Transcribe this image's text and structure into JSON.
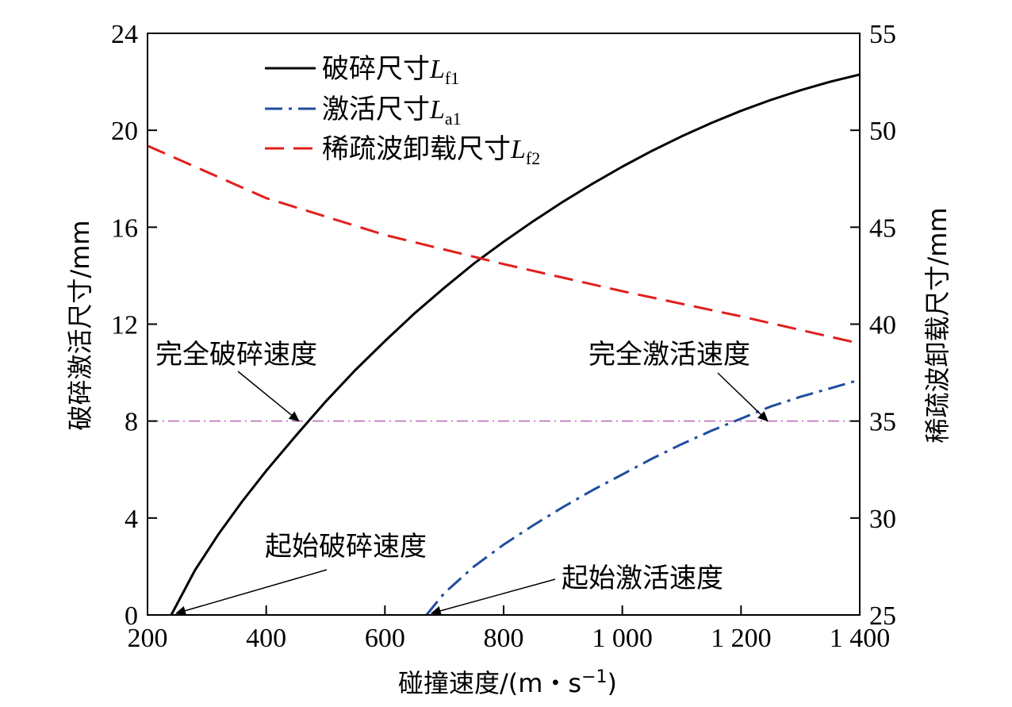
{
  "chart_data": {
    "type": "line",
    "xlabel": "碰撞速度/(m・s",
    "xlabel_sup": "−1",
    "xlabel_close": ")",
    "ylabel_left": "破碎激活尺寸/mm",
    "ylabel_right": "稀疏波卸载尺寸/mm",
    "xlim": [
      200,
      1400
    ],
    "ylim_left": [
      0,
      24
    ],
    "ylim_right": [
      25,
      55
    ],
    "x_ticks": [
      200,
      400,
      600,
      800,
      1000,
      1200,
      1400
    ],
    "x_tick_labels": [
      "200",
      "400",
      "600",
      "800",
      "1 000",
      "1 200",
      "1 400"
    ],
    "y_left_ticks": [
      0,
      4,
      8,
      12,
      16,
      20,
      24
    ],
    "y_left_tick_labels": [
      "0",
      "4",
      "8",
      "12",
      "16",
      "20",
      "24"
    ],
    "y_right_ticks": [
      25,
      30,
      35,
      40,
      45,
      50,
      55
    ],
    "y_right_tick_labels": [
      "25",
      "30",
      "35",
      "40",
      "45",
      "50",
      "55"
    ],
    "legend_position": "top-left",
    "series": [
      {
        "name_main": "破碎尺寸",
        "name_var": "L",
        "name_sub": "f1",
        "axis": "left",
        "style": "solid",
        "color": "#000000",
        "x": [
          240,
          280,
          320,
          360,
          400,
          450,
          500,
          550,
          600,
          650,
          700,
          750,
          800,
          850,
          900,
          950,
          1000,
          1050,
          1100,
          1150,
          1200,
          1250,
          1300,
          1350,
          1400
        ],
        "y": [
          0,
          1.85,
          3.35,
          4.7,
          5.95,
          7.4,
          8.8,
          10.1,
          11.3,
          12.45,
          13.5,
          14.5,
          15.4,
          16.25,
          17.05,
          17.8,
          18.5,
          19.15,
          19.75,
          20.3,
          20.8,
          21.25,
          21.65,
          22.0,
          22.3
        ]
      },
      {
        "name_main": "激活尺寸",
        "name_var": "L",
        "name_sub": "a1",
        "axis": "left",
        "style": "dashdot",
        "color": "#1f4e9c",
        "x": [
          670,
          700,
          750,
          800,
          850,
          900,
          950,
          1000,
          1050,
          1100,
          1150,
          1200,
          1250,
          1300,
          1350,
          1400
        ],
        "y": [
          0,
          0.9,
          2.0,
          2.9,
          3.7,
          4.45,
          5.15,
          5.8,
          6.45,
          7.05,
          7.6,
          8.1,
          8.6,
          9.0,
          9.35,
          9.7
        ]
      },
      {
        "name_main": "稀疏波卸载尺寸",
        "name_var": "L",
        "name_sub": "f2",
        "axis": "right",
        "style": "dashed",
        "color": "#e0201e",
        "x": [
          200,
          400,
          600,
          800,
          1000,
          1200,
          1400
        ],
        "y": [
          49.2,
          46.5,
          44.6,
          43.1,
          41.7,
          40.4,
          39.0
        ]
      }
    ],
    "reference_line": {
      "y": 8,
      "axis": "left",
      "color": "#b368b3",
      "style": "dashdot"
    },
    "annotations": [
      {
        "text": "完全破碎速度",
        "target_x": 455,
        "target_y": 8,
        "axis": "left"
      },
      {
        "text": "完全激活速度",
        "target_x": 1245,
        "target_y": 8,
        "axis": "left"
      },
      {
        "text": "起始破碎速度",
        "target_x": 240,
        "target_y": 0,
        "axis": "left"
      },
      {
        "text": "起始激活速度",
        "target_x": 670,
        "target_y": 0,
        "axis": "left"
      }
    ]
  }
}
